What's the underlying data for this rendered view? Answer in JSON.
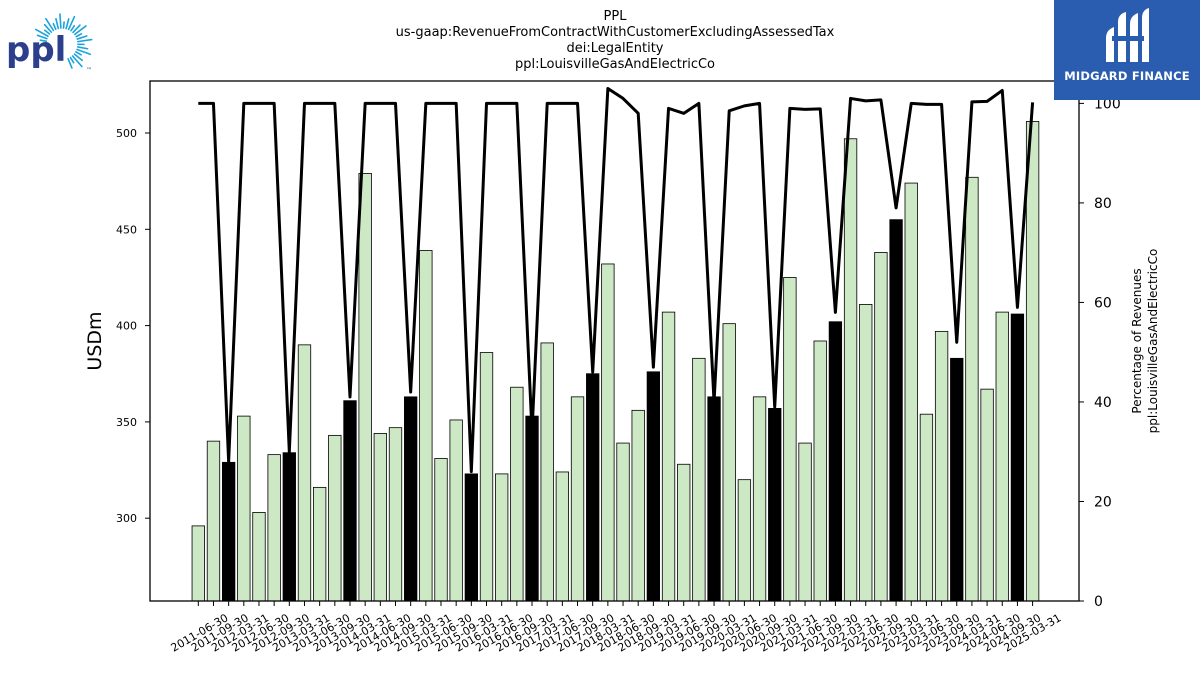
{
  "header": {
    "title_lines": [
      "PPL",
      "us-gaap:RevenueFromContractWithCustomerExcludingAssessedTax",
      "dei:LegalEntity",
      "ppl:LouisvilleGasAndElectricCo"
    ]
  },
  "logos": {
    "left_text": "ppl",
    "left_tm": "™",
    "right_text": "MIDGARD FINANCE"
  },
  "colors": {
    "bar_light": "#cce8c4",
    "bar_dark": "#000000",
    "line": "#000000",
    "ppl_blue": "#2b3f8c",
    "ppl_sun": "#1aa3dc",
    "midgard_bg": "#2a5db0"
  },
  "chart_data": {
    "type": "bar",
    "ylabel": "USDm",
    "y2label_lines": [
      "Percentage of Revenues",
      "ppl:LouisvilleGasAndElectricCo"
    ],
    "ylim": [
      257,
      527
    ],
    "y2lim": [
      0,
      104.5
    ],
    "yticks": [
      300,
      350,
      400,
      450,
      500
    ],
    "y2ticks": [
      0,
      20,
      40,
      60,
      80,
      100
    ],
    "xtick_labels": [
      "2011-06-30",
      "2011-09-30",
      "2012-03-31",
      "2012-06-30",
      "2012-09-30",
      "2013-03-31",
      "2013-06-30",
      "2013-09-30",
      "2014-03-31",
      "2014-06-30",
      "2014-09-30",
      "2015-03-31",
      "2015-06-30",
      "2015-09-30",
      "2016-03-31",
      "2016-06-30",
      "2016-09-30",
      "2017-03-31",
      "2017-06-30",
      "2017-09-30",
      "2018-03-31",
      "2018-06-30",
      "2018-09-30",
      "2019-03-31",
      "2019-06-30",
      "2019-09-30",
      "2020-03-31",
      "2020-06-30",
      "2020-09-30",
      "2021-03-31",
      "2021-06-30",
      "2021-09-30",
      "2022-03-31",
      "2022-06-30",
      "2022-09-30",
      "2023-03-31",
      "2023-06-30",
      "2023-09-30",
      "2024-03-31",
      "2024-06-30",
      "2024-09-30",
      "2025-03-31"
    ],
    "bars": [
      {
        "value": 296,
        "dark": false
      },
      {
        "value": 340,
        "dark": false
      },
      {
        "value": 329,
        "dark": true
      },
      {
        "value": 353,
        "dark": false
      },
      {
        "value": 303,
        "dark": false
      },
      {
        "value": 333,
        "dark": false
      },
      {
        "value": 334,
        "dark": true
      },
      {
        "value": 390,
        "dark": false
      },
      {
        "value": 316,
        "dark": false
      },
      {
        "value": 343,
        "dark": false
      },
      {
        "value": 361,
        "dark": true
      },
      {
        "value": 479,
        "dark": false
      },
      {
        "value": 344,
        "dark": false
      },
      {
        "value": 347,
        "dark": false
      },
      {
        "value": 363,
        "dark": true
      },
      {
        "value": 439,
        "dark": false
      },
      {
        "value": 331,
        "dark": false
      },
      {
        "value": 351,
        "dark": false
      },
      {
        "value": 323,
        "dark": true
      },
      {
        "value": 386,
        "dark": false
      },
      {
        "value": 323,
        "dark": false
      },
      {
        "value": 368,
        "dark": false
      },
      {
        "value": 353,
        "dark": true
      },
      {
        "value": 391,
        "dark": false
      },
      {
        "value": 324,
        "dark": false
      },
      {
        "value": 363,
        "dark": false
      },
      {
        "value": 375,
        "dark": true
      },
      {
        "value": 432,
        "dark": false
      },
      {
        "value": 339,
        "dark": false
      },
      {
        "value": 356,
        "dark": false
      },
      {
        "value": 376,
        "dark": true
      },
      {
        "value": 407,
        "dark": false
      },
      {
        "value": 328,
        "dark": false
      },
      {
        "value": 383,
        "dark": false
      },
      {
        "value": 363,
        "dark": true
      },
      {
        "value": 401,
        "dark": false
      },
      {
        "value": 320,
        "dark": false
      },
      {
        "value": 363,
        "dark": false
      },
      {
        "value": 357,
        "dark": true
      },
      {
        "value": 425,
        "dark": false
      },
      {
        "value": 339,
        "dark": false
      },
      {
        "value": 392,
        "dark": false
      },
      {
        "value": 402,
        "dark": true
      },
      {
        "value": 497,
        "dark": false
      },
      {
        "value": 411,
        "dark": false
      },
      {
        "value": 438,
        "dark": false
      },
      {
        "value": 455,
        "dark": true
      },
      {
        "value": 474,
        "dark": false
      },
      {
        "value": 354,
        "dark": false
      },
      {
        "value": 397,
        "dark": false
      },
      {
        "value": 383,
        "dark": true
      },
      {
        "value": 477,
        "dark": false
      },
      {
        "value": 367,
        "dark": false
      },
      {
        "value": 407,
        "dark": false
      },
      {
        "value": 406,
        "dark": true
      },
      {
        "value": 506,
        "dark": false
      }
    ],
    "line_values": [
      100,
      100,
      28,
      100,
      100,
      100,
      30,
      100,
      100,
      100,
      41,
      100,
      100,
      100,
      42,
      100,
      100,
      100,
      26,
      100,
      100,
      100,
      34,
      100,
      100,
      100,
      46,
      103,
      101,
      98,
      47,
      99,
      98,
      100,
      40,
      98.5,
      99.5,
      100,
      39,
      99,
      98.8,
      98.9,
      58,
      101,
      100.5,
      100.7,
      79,
      100,
      99.8,
      99.8,
      52,
      100.3,
      100.4,
      102.6,
      59,
      100.2
    ]
  }
}
